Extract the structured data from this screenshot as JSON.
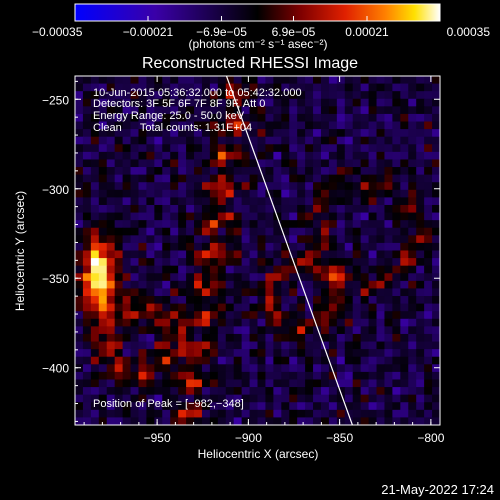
{
  "chart_data": {
    "type": "heatmap",
    "title": "Reconstructed RHESSI Image",
    "xlabel": "Heliocentric X (arcsec)",
    "ylabel": "Heliocentric Y (arcsec)",
    "xlim": [
      -995,
      -795
    ],
    "ylim": [
      -432,
      -237
    ],
    "x_ticks": [
      -950,
      -900,
      -850,
      -800
    ],
    "x_tick_labels": [
      "−950",
      "−900",
      "−850",
      "−800"
    ],
    "y_ticks": [
      -250,
      -300,
      -350,
      -400
    ],
    "y_tick_labels": [
      "−250",
      "−300",
      "−350",
      "−400"
    ],
    "colorbar": {
      "range": [
        -0.00035,
        0.00035
      ],
      "ticks": [
        -0.00035,
        -0.00021,
        -6.9e-05,
        6.9e-05,
        0.00021,
        0.00035
      ],
      "tick_labels": [
        "−0.00035",
        "−0.00021",
        "−6.9e−05",
        "6.9e−05",
        "0.00021",
        "0.00035"
      ],
      "units": "(photons cm⁻² s⁻¹ asec⁻²)"
    },
    "annotations": {
      "time": "10-Jun-2015 05:36:32.000 to 05:42:32.000",
      "detectors": "Detectors: 3F 5F 6F 7F 8F 9F, Att 0",
      "energy": "Energy Range: 25.0 - 50.0 keV",
      "clean": "Clean      Total counts: 1.31E+04",
      "peak": "Position of Peak = [−982,−348]"
    },
    "limb_line": [
      [
        -912,
        -237
      ],
      [
        -843,
        -432
      ]
    ],
    "peak": [
      -982,
      -348
    ],
    "colors": {
      "colormap": [
        "#0000ff",
        "#3a00a8",
        "#000000",
        "#800000",
        "#e02000",
        "#ff8000",
        "#ffe000",
        "#ffffff"
      ]
    }
  },
  "footer": {
    "timestamp": "21-May-2022 17:24"
  }
}
